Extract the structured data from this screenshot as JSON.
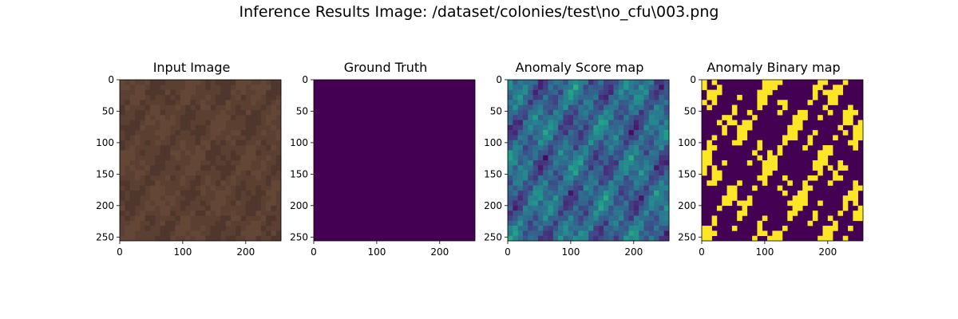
{
  "figure": {
    "title": "Inference Results Image: /dataset/colonies/test\\no_cfu\\003.png"
  },
  "chart_data": [
    {
      "type": "heatmap",
      "title": "Input Image",
      "xlabel": "",
      "ylabel": "",
      "xlim": [
        0,
        256
      ],
      "ylim": [
        256,
        0
      ],
      "xticks": [
        0,
        100,
        200
      ],
      "yticks": [
        0,
        50,
        100,
        150,
        200,
        250
      ],
      "content": "leather texture photo (brown)",
      "colors": {
        "base": "#5b3f31",
        "light": "#6d4d3b",
        "dark": "#46302a"
      }
    },
    {
      "type": "heatmap",
      "title": "Ground Truth",
      "xlabel": "",
      "ylabel": "",
      "xlim": [
        0,
        256
      ],
      "ylim": [
        256,
        0
      ],
      "xticks": [
        0,
        100,
        200
      ],
      "yticks": [
        0,
        50,
        100,
        150,
        200,
        250
      ],
      "content": "uniform mask (all zeros)",
      "colors": {
        "fill": "#440154"
      }
    },
    {
      "type": "heatmap",
      "title": "Anomaly Score map",
      "xlabel": "",
      "ylabel": "",
      "xlim": [
        0,
        256
      ],
      "ylim": [
        256,
        0
      ],
      "xticks": [
        0,
        100,
        200
      ],
      "yticks": [
        0,
        50,
        100,
        150,
        200,
        250
      ],
      "colormap": "viridis",
      "content": "continuous anomaly score, low (dark purple) to high (green/yellow)"
    },
    {
      "type": "heatmap",
      "title": "Anomaly Binary map",
      "xlabel": "",
      "ylabel": "",
      "xlim": [
        0,
        256
      ],
      "ylim": [
        256,
        0
      ],
      "xticks": [
        0,
        100,
        200
      ],
      "yticks": [
        0,
        50,
        100,
        150,
        200,
        250
      ],
      "colormap": "viridis",
      "content": "thresholded anomaly mask, 0 (purple) / 1 (yellow)",
      "colors": {
        "zero": "#440154",
        "one": "#fde725"
      }
    }
  ]
}
